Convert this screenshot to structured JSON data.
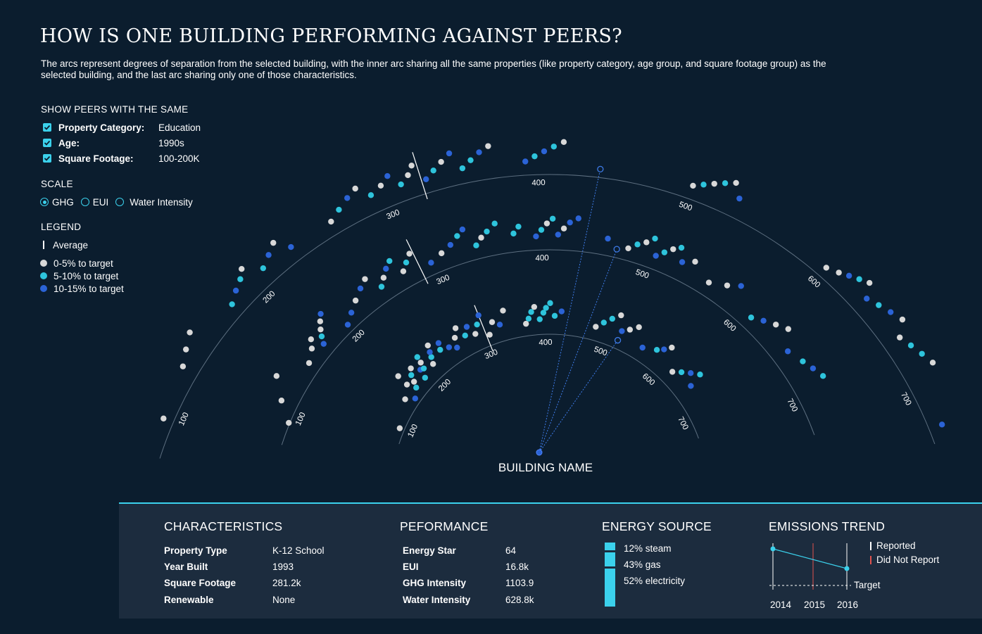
{
  "title": "HOW IS ONE BUILDING PERFORMING AGAINST PEERS?",
  "subtitle": "The arcs represent degrees of separation from the selected building, with the inner arc sharing all the same properties (like property category, age group, and square footage group) as the selected building, and the last arc sharing only one of those characteristics.",
  "filters": {
    "heading": "SHOW PEERS WITH THE SAME",
    "items": [
      {
        "label": "Property Category:",
        "value": "Education",
        "checked": true
      },
      {
        "label": "Age:",
        "value": "1990s",
        "checked": true
      },
      {
        "label": "Square Footage:",
        "value": "100-200K",
        "checked": true
      }
    ]
  },
  "scale": {
    "heading": "SCALE",
    "options": [
      {
        "label": "GHG",
        "selected": true
      },
      {
        "label": "EUI",
        "selected": false
      },
      {
        "label": "Water Intensity",
        "selected": false
      }
    ]
  },
  "legend": {
    "heading": "LEGEND",
    "average": "Average",
    "items": [
      {
        "label": "0-5% to target",
        "color": "#d8d8d8"
      },
      {
        "label": "5-10% to target",
        "color": "#2ec4dc"
      },
      {
        "label": "10-15% to target",
        "color": "#2b63d6"
      }
    ]
  },
  "chart_data": {
    "type": "radial-arc-dotplot",
    "building_label": "BUILDING NAME",
    "arc_ticks": [
      100,
      200,
      300,
      400,
      500,
      600,
      700
    ],
    "colors": {
      "light": "#d8d8d8",
      "cyan": "#2ec4dc",
      "blue": "#2b63d6"
    },
    "arcs": [
      {
        "name": "inner",
        "average": 305,
        "selected_value": 520,
        "dots": [
          [
            95,
            "light",
            1.02
          ],
          [
            140,
            "light",
            1.3
          ],
          [
            160,
            "light",
            1.52
          ],
          [
            162,
            "light",
            1.9
          ],
          [
            150,
            "blue",
            1.05
          ],
          [
            165,
            "cyan",
            1.23
          ],
          [
            170,
            "light",
            1.4
          ],
          [
            175,
            "cyan",
            1.6
          ],
          [
            182,
            "light",
            1.75
          ],
          [
            186,
            "cyan",
            1.22
          ],
          [
            190,
            "blue",
            1.5
          ],
          [
            195,
            "cyan",
            1.45
          ],
          [
            198,
            "light",
            1.65
          ],
          [
            200,
            "cyan",
            1.85
          ],
          [
            210,
            "light",
            1.35
          ],
          [
            215,
            "cyan",
            1.55
          ],
          [
            218,
            "blue",
            1.7
          ],
          [
            222,
            "light",
            1.9
          ],
          [
            232,
            "cyan",
            1.55
          ],
          [
            236,
            "blue",
            1.75
          ],
          [
            245,
            "blue",
            1.45
          ],
          [
            255,
            "blue",
            1.3
          ],
          [
            260,
            "light",
            1.6
          ],
          [
            268,
            "light",
            1.85
          ],
          [
            275,
            "cyan",
            1.5
          ],
          [
            283,
            "blue",
            1.72
          ],
          [
            290,
            "light",
            1.4
          ],
          [
            298,
            "cyan",
            1.65
          ],
          [
            305,
            "blue",
            1.9
          ],
          [
            310,
            "light",
            1.2
          ],
          [
            320,
            "light",
            1.55
          ],
          [
            330,
            "blue",
            1.4
          ],
          [
            340,
            "light",
            1.8
          ],
          [
            370,
            "light",
            1.25
          ],
          [
            375,
            "cyan",
            1.4
          ],
          [
            380,
            "cyan",
            1.6
          ],
          [
            385,
            "light",
            1.75
          ],
          [
            392,
            "cyan",
            1.35
          ],
          [
            398,
            "cyan",
            1.55
          ],
          [
            402,
            "cyan",
            1.7
          ],
          [
            408,
            "cyan",
            1.85
          ],
          [
            415,
            "cyan",
            1.45
          ],
          [
            425,
            "blue",
            1.6
          ],
          [
            480,
            "light",
            1.3
          ],
          [
            490,
            "cyan",
            1.5
          ],
          [
            500,
            "cyan",
            1.7
          ],
          [
            510,
            "light",
            1.9
          ],
          [
            520,
            "blue",
            1.45
          ],
          [
            530,
            "light",
            1.6
          ],
          [
            540,
            "light",
            1.8
          ],
          [
            560,
            "blue",
            1.3
          ],
          [
            580,
            "cyan",
            1.5
          ],
          [
            588,
            "blue",
            1.65
          ],
          [
            595,
            "light",
            1.85
          ],
          [
            620,
            "light",
            1.3
          ],
          [
            630,
            "cyan",
            1.5
          ],
          [
            640,
            "blue",
            1.7
          ],
          [
            650,
            "cyan",
            1.9
          ],
          [
            655,
            "blue",
            1.45
          ]
        ]
      },
      {
        "name": "middle",
        "average": 285,
        "selected_value": 470,
        "dots": [
          [
            92,
            "light",
            0.9
          ],
          [
            108,
            "light",
            1.4
          ],
          [
            125,
            "light",
            1.9
          ],
          [
            150,
            "light",
            1.25
          ],
          [
            162,
            "light",
            1.45
          ],
          [
            168,
            "light",
            1.65
          ],
          [
            172,
            "blue",
            1.25
          ],
          [
            176,
            "cyan",
            1.45
          ],
          [
            180,
            "light",
            1.62
          ],
          [
            185,
            "light",
            1.8
          ],
          [
            190,
            "blue",
            1.95
          ],
          [
            200,
            "blue",
            1.1
          ],
          [
            210,
            "blue",
            1.3
          ],
          [
            220,
            "light",
            1.5
          ],
          [
            230,
            "blue",
            1.7
          ],
          [
            238,
            "light",
            1.85
          ],
          [
            246,
            "cyan",
            1.35
          ],
          [
            252,
            "light",
            1.55
          ],
          [
            258,
            "blue",
            1.75
          ],
          [
            264,
            "cyan",
            1.9
          ],
          [
            270,
            "light",
            1.4
          ],
          [
            276,
            "cyan",
            1.6
          ],
          [
            282,
            "light",
            1.8
          ],
          [
            296,
            "blue",
            1.25
          ],
          [
            308,
            "light",
            1.4
          ],
          [
            318,
            "blue",
            1.55
          ],
          [
            326,
            "cyan",
            1.75
          ],
          [
            332,
            "blue",
            1.9
          ],
          [
            340,
            "cyan",
            1.3
          ],
          [
            346,
            "light",
            1.5
          ],
          [
            352,
            "cyan",
            1.65
          ],
          [
            360,
            "cyan",
            1.85
          ],
          [
            375,
            "cyan",
            1.45
          ],
          [
            380,
            "cyan",
            1.65
          ],
          [
            395,
            "blue",
            1.3
          ],
          [
            400,
            "cyan",
            1.5
          ],
          [
            405,
            "light",
            1.7
          ],
          [
            410,
            "cyan",
            1.85
          ],
          [
            415,
            "blue",
            1.35
          ],
          [
            420,
            "light",
            1.55
          ],
          [
            425,
            "blue",
            1.75
          ],
          [
            432,
            "blue",
            1.9
          ],
          [
            460,
            "blue",
            1.4
          ],
          [
            480,
            "light",
            1.25
          ],
          [
            487,
            "cyan",
            1.45
          ],
          [
            494,
            "light",
            1.6
          ],
          [
            500,
            "cyan",
            1.8
          ],
          [
            506,
            "blue",
            1.3
          ],
          [
            512,
            "cyan",
            1.5
          ],
          [
            518,
            "light",
            1.7
          ],
          [
            524,
            "cyan",
            1.85
          ],
          [
            530,
            "blue",
            1.45
          ],
          [
            540,
            "light",
            1.65
          ],
          [
            560,
            "light",
            1.3
          ],
          [
            575,
            "light",
            1.55
          ],
          [
            585,
            "blue",
            1.8
          ],
          [
            610,
            "cyan",
            1.25
          ],
          [
            620,
            "blue",
            1.45
          ],
          [
            630,
            "light",
            1.65
          ],
          [
            640,
            "light",
            1.85
          ],
          [
            655,
            "blue",
            1.4
          ],
          [
            670,
            "cyan",
            1.6
          ],
          [
            680,
            "blue",
            1.75
          ],
          [
            690,
            "cyan",
            1.9
          ]
        ]
      },
      {
        "name": "outer",
        "average": 325,
        "selected_value": 440,
        "dots": [
          [
            95,
            "light",
            1.2
          ],
          [
            130,
            "light",
            1.4
          ],
          [
            140,
            "light",
            1.6
          ],
          [
            150,
            "light",
            1.8
          ],
          [
            180,
            "cyan",
            1.3
          ],
          [
            188,
            "blue",
            1.5
          ],
          [
            195,
            "cyan",
            1.65
          ],
          [
            200,
            "light",
            1.85
          ],
          [
            210,
            "cyan",
            1.4
          ],
          [
            218,
            "blue",
            1.6
          ],
          [
            225,
            "light",
            1.8
          ],
          [
            232,
            "blue",
            1.35
          ],
          [
            262,
            "light",
            1.3
          ],
          [
            270,
            "cyan",
            1.5
          ],
          [
            278,
            "blue",
            1.7
          ],
          [
            285,
            "light",
            1.85
          ],
          [
            292,
            "cyan",
            1.45
          ],
          [
            300,
            "light",
            1.6
          ],
          [
            306,
            "blue",
            1.8
          ],
          [
            312,
            "cyan",
            1.4
          ],
          [
            318,
            "light",
            1.6
          ],
          [
            322,
            "light",
            1.85
          ],
          [
            328,
            "blue",
            1.3
          ],
          [
            334,
            "cyan",
            1.5
          ],
          [
            340,
            "light",
            1.7
          ],
          [
            346,
            "blue",
            1.9
          ],
          [
            352,
            "cyan",
            1.35
          ],
          [
            358,
            "cyan",
            1.55
          ],
          [
            364,
            "blue",
            1.75
          ],
          [
            370,
            "light",
            1.9
          ],
          [
            392,
            "blue",
            1.3
          ],
          [
            398,
            "cyan",
            1.45
          ],
          [
            404,
            "blue",
            1.6
          ],
          [
            410,
            "cyan",
            1.75
          ],
          [
            416,
            "light",
            1.9
          ],
          [
            500,
            "light",
            1.3
          ],
          [
            506,
            "cyan",
            1.45
          ],
          [
            512,
            "light",
            1.6
          ],
          [
            518,
            "cyan",
            1.75
          ],
          [
            524,
            "light",
            1.9
          ],
          [
            530,
            "blue",
            1.5
          ],
          [
            600,
            "light",
            1.2
          ],
          [
            608,
            "light",
            1.35
          ],
          [
            614,
            "blue",
            1.5
          ],
          [
            620,
            "cyan",
            1.65
          ],
          [
            626,
            "light",
            1.8
          ],
          [
            632,
            "blue",
            1.4
          ],
          [
            640,
            "cyan",
            1.55
          ],
          [
            648,
            "blue",
            1.7
          ],
          [
            656,
            "light",
            1.85
          ],
          [
            664,
            "light",
            1.45
          ],
          [
            672,
            "cyan",
            1.6
          ],
          [
            680,
            "cyan",
            1.75
          ],
          [
            688,
            "light",
            1.9
          ],
          [
            725,
            "blue",
            1.3
          ]
        ]
      }
    ]
  },
  "detail": {
    "characteristics": {
      "heading": "CHARACTERISTICS",
      "rows": [
        {
          "key": "Property Type",
          "value": "K-12 School"
        },
        {
          "key": "Year Built",
          "value": "1993"
        },
        {
          "key": "Square Footage",
          "value": "281.2k"
        },
        {
          "key": "Renewable",
          "value": "None"
        }
      ]
    },
    "performance": {
      "heading": "PEFORMANCE",
      "rows": [
        {
          "key": "Energy Star",
          "value": "64"
        },
        {
          "key": "EUI",
          "value": "16.8k"
        },
        {
          "key": "GHG Intensity",
          "value": "1103.9"
        },
        {
          "key": "Water Intensity",
          "value": "628.8k"
        }
      ]
    },
    "energy_source": {
      "heading": "ENERGY SOURCE",
      "items": [
        {
          "label": "12% steam",
          "percent": 12
        },
        {
          "label": "43% gas",
          "percent": 43
        },
        {
          "label": "52% electricity",
          "percent": 52
        }
      ]
    },
    "emissions_trend": {
      "heading": "EMISSIONS TREND",
      "legend": [
        {
          "label": "Reported",
          "color": "#ffffff"
        },
        {
          "label": "Did Not Report",
          "color": "#e0524f"
        }
      ],
      "target_label": "Target",
      "years": [
        "2014",
        "2015",
        "2016"
      ],
      "reported": [
        true,
        false,
        true
      ],
      "values": [
        1.0,
        null,
        0.55
      ]
    }
  }
}
